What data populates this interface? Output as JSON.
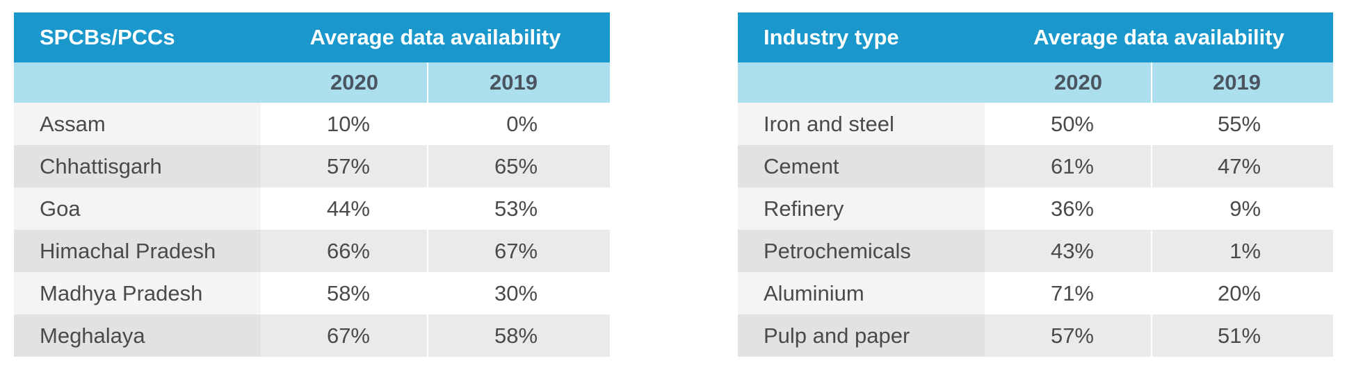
{
  "colors": {
    "header_bg": "#1a98cc",
    "subheader_bg": "#abdfee",
    "row_light": "#ffffff",
    "row_dark": "#eae9ec",
    "text": "#4a4a4a"
  },
  "left_table": {
    "col_label": "SPCBs/PCCs",
    "group_label": "Average data availability",
    "year_a": "2020",
    "year_b": "2019",
    "rows": [
      {
        "name": "Assam",
        "v2020": "10%",
        "v2019": "0%"
      },
      {
        "name": "Chhattisgarh",
        "v2020": "57%",
        "v2019": "65%"
      },
      {
        "name": "Goa",
        "v2020": "44%",
        "v2019": "53%"
      },
      {
        "name": "Himachal Pradesh",
        "v2020": "66%",
        "v2019": "67%"
      },
      {
        "name": "Madhya Pradesh",
        "v2020": "58%",
        "v2019": "30%"
      },
      {
        "name": "Meghalaya",
        "v2020": "67%",
        "v2019": "58%"
      }
    ]
  },
  "right_table": {
    "col_label": "Industry type",
    "group_label": "Average data availability",
    "year_a": "2020",
    "year_b": "2019",
    "rows": [
      {
        "name": "Iron and steel",
        "v2020": "50%",
        "v2019": "55%"
      },
      {
        "name": "Cement",
        "v2020": "61%",
        "v2019": "47%"
      },
      {
        "name": "Refinery",
        "v2020": "36%",
        "v2019": "9%"
      },
      {
        "name": "Petrochemicals",
        "v2020": "43%",
        "v2019": "1%"
      },
      {
        "name": "Aluminium",
        "v2020": "71%",
        "v2019": "20%"
      },
      {
        "name": "Pulp and paper",
        "v2020": "57%",
        "v2019": "51%"
      }
    ]
  }
}
